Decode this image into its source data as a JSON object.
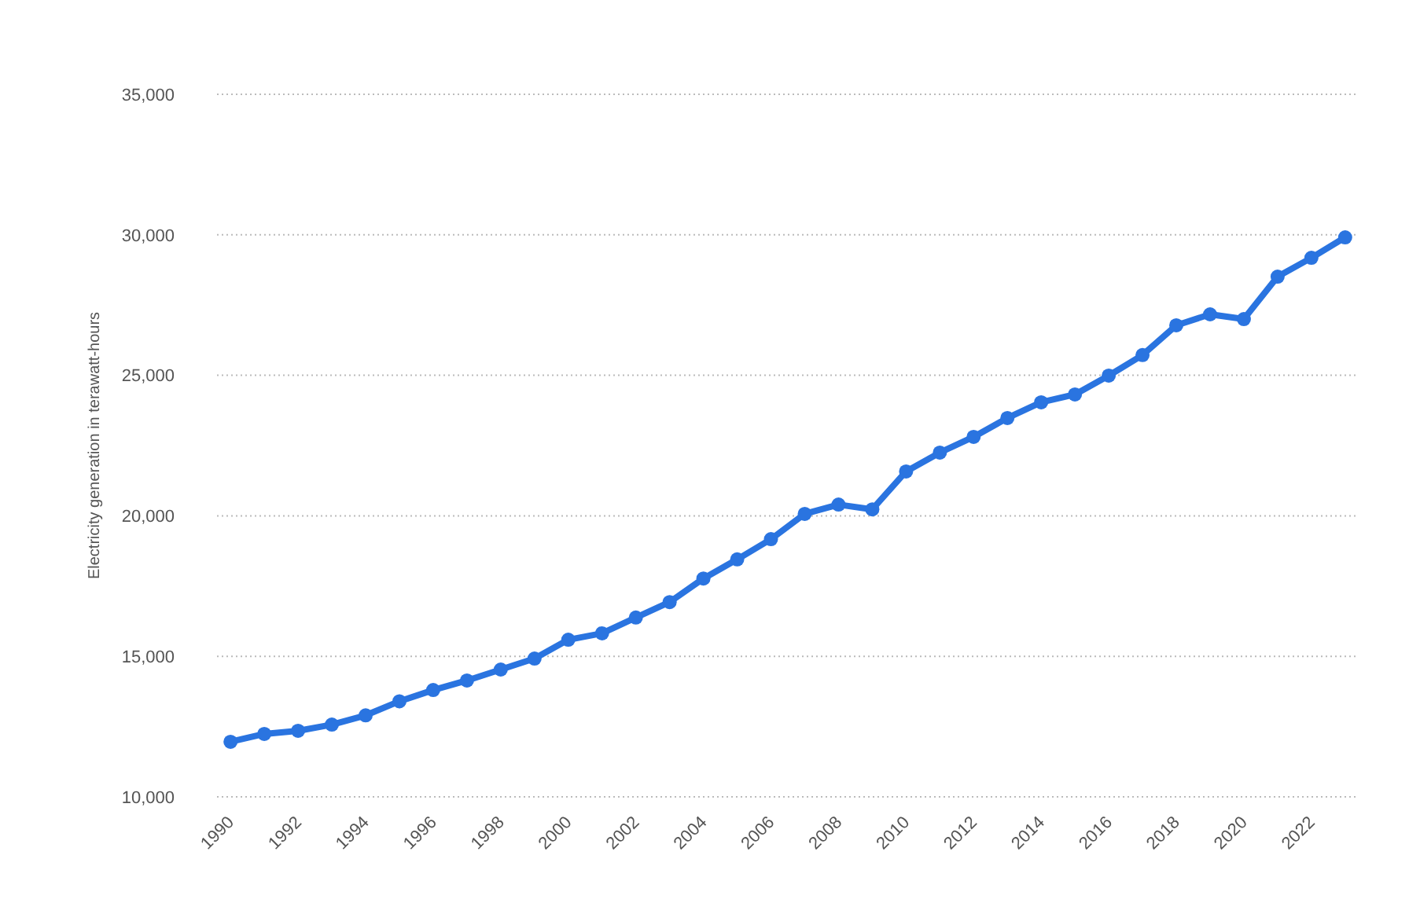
{
  "chart_data": {
    "type": "line",
    "ylabel": "Electricity generation in terawatt-hours",
    "x": [
      1990,
      1991,
      1992,
      1993,
      1994,
      1995,
      1996,
      1997,
      1998,
      1999,
      2000,
      2001,
      2002,
      2003,
      2004,
      2005,
      2006,
      2007,
      2008,
      2009,
      2010,
      2011,
      2012,
      2013,
      2014,
      2015,
      2016,
      2017,
      2018,
      2019,
      2020,
      2021,
      2022,
      2023
    ],
    "series": [
      {
        "color": "#2a74e0",
        "values": [
          11960,
          12240,
          12350,
          12570,
          12900,
          13400,
          13800,
          14140,
          14530,
          14920,
          15590,
          15820,
          16380,
          16930,
          17770,
          18450,
          19170,
          20070,
          20400,
          20230,
          21580,
          22250,
          22810,
          23480,
          24040,
          24320,
          24990,
          25720,
          26780,
          27170,
          27000,
          28510,
          29180,
          29910
        ]
      }
    ],
    "xlim": [
      1989.6,
      2023.4
    ],
    "xticks": [
      1990,
      1992,
      1994,
      1996,
      1998,
      2000,
      2002,
      2004,
      2006,
      2008,
      2010,
      2012,
      2014,
      2016,
      2018,
      2020,
      2022
    ],
    "ylim": [
      10000,
      35000
    ],
    "yticks": [
      {
        "value": 10000,
        "label": "10,000"
      },
      {
        "value": 15000,
        "label": "15,000"
      },
      {
        "value": 20000,
        "label": "20,000"
      },
      {
        "value": 25000,
        "label": "25,000"
      },
      {
        "value": 30000,
        "label": "30,000"
      },
      {
        "value": 35000,
        "label": "35,000"
      }
    ],
    "grid": "y",
    "marker": "circle",
    "line_style": "solid"
  }
}
